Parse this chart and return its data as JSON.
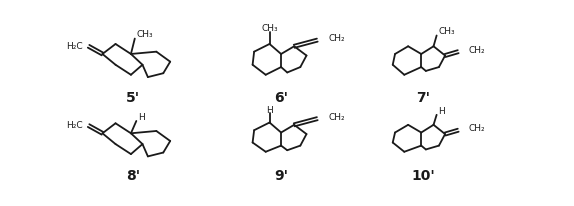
{
  "background_color": "#ffffff",
  "line_color": "#1a1a1a",
  "text_color": "#1a1a1a",
  "lw": 1.3,
  "labels": [
    "5'",
    "6'",
    "7'",
    "8'",
    "9'",
    "10'"
  ],
  "label_fontsize": 10
}
